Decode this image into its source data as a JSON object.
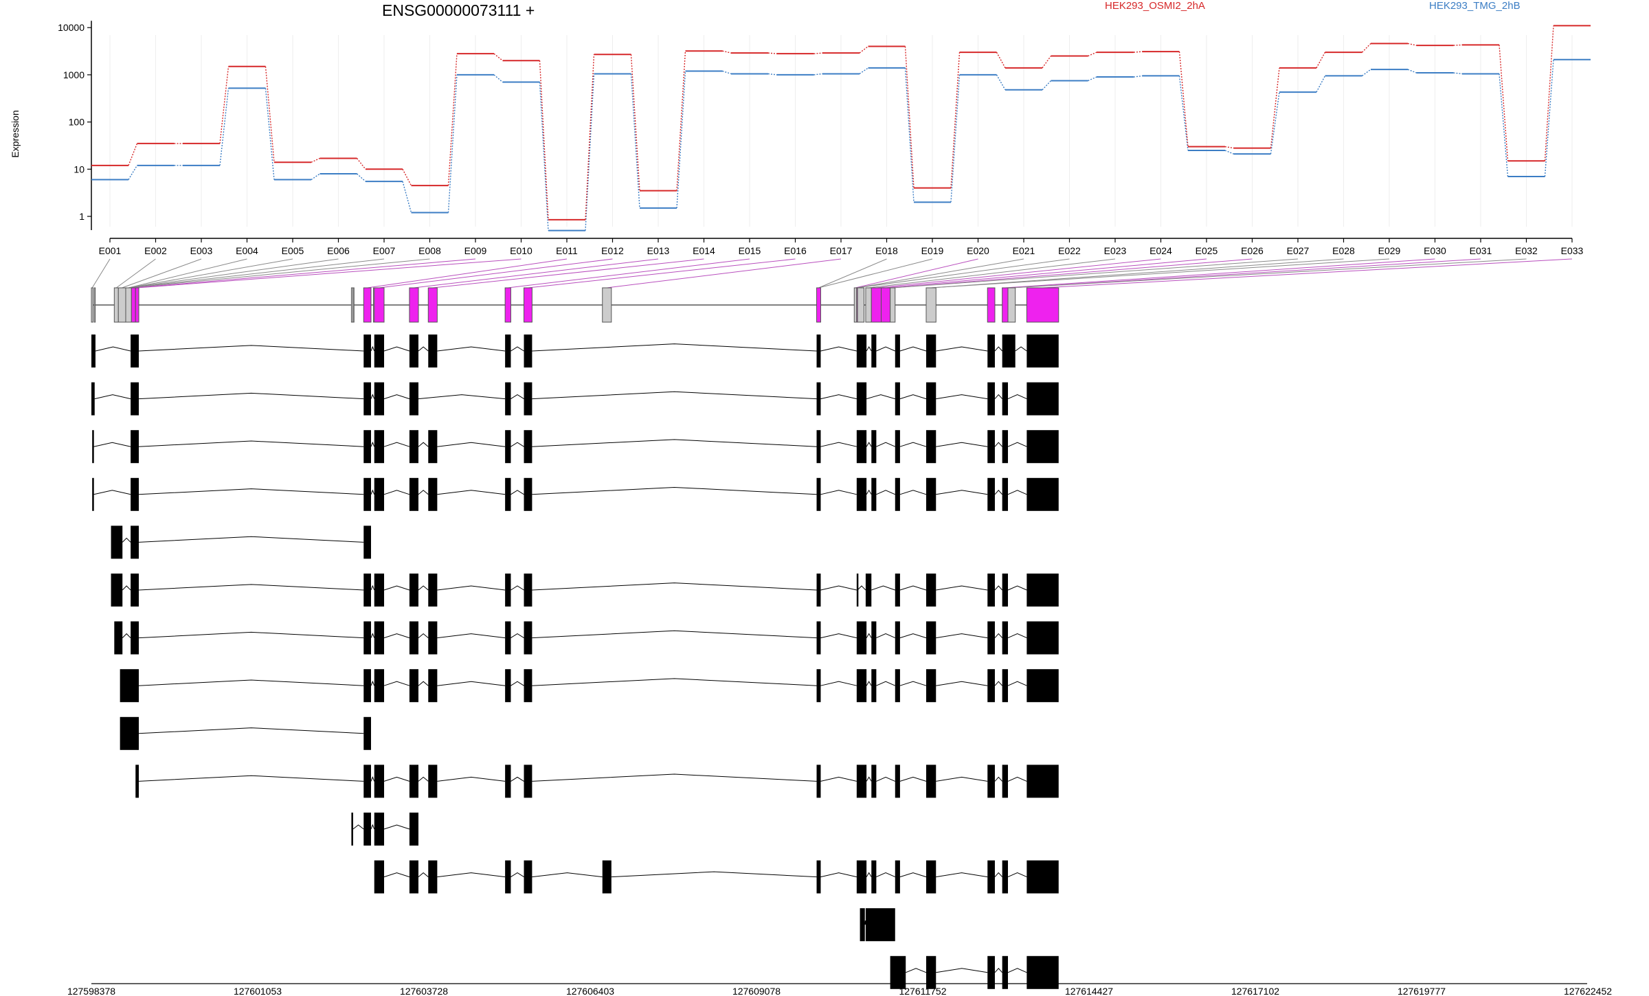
{
  "gene_title": "ENSG00000073111 +",
  "legend": [
    {
      "label": "HEK293_OSMI2_2hA",
      "color": "#d62728"
    },
    {
      "label": "HEK293_TMG_2hB",
      "color": "#3b7dc4"
    }
  ],
  "colors": {
    "highlight": "#ee22ee",
    "gray_exon": "#cccccc",
    "transcript": "#000000",
    "line_red": "#d62728",
    "line_blue": "#3b7dc4"
  },
  "chart_data": {
    "type": "line",
    "ylabel": "Expression",
    "yscale": "log",
    "yticks": [
      "1",
      "10",
      "100",
      "1000",
      "10000"
    ],
    "categories": [
      "E001",
      "E002",
      "E003",
      "E004",
      "E005",
      "E006",
      "E007",
      "E008",
      "E009",
      "E010",
      "E011",
      "E012",
      "E013",
      "E014",
      "E015",
      "E016",
      "E017",
      "E018",
      "E019",
      "E020",
      "E021",
      "E022",
      "E023",
      "E024",
      "E025",
      "E026",
      "E027",
      "E028",
      "E029",
      "E030",
      "E031",
      "E032",
      "E033"
    ],
    "series": [
      {
        "name": "HEK293_OSMI2_2hA",
        "values": [
          12,
          35,
          35,
          1500,
          14,
          17,
          10,
          4.5,
          2800,
          2000,
          0.85,
          2700,
          3.5,
          3200,
          2900,
          2800,
          2900,
          4000,
          4,
          3000,
          1400,
          2500,
          3000,
          3100,
          30,
          28,
          1400,
          3000,
          4600,
          4200,
          4300,
          15,
          11000
        ]
      },
      {
        "name": "HEK293_TMG_2hB",
        "values": [
          6,
          12,
          12,
          520,
          6,
          8,
          5.5,
          1.2,
          1000,
          700,
          0.5,
          1050,
          1.5,
          1200,
          1050,
          1000,
          1050,
          1400,
          2,
          1000,
          480,
          750,
          900,
          950,
          25,
          21,
          430,
          950,
          1300,
          1100,
          1050,
          7,
          2100
        ]
      }
    ],
    "genome_ticks": [
      "127598378",
      "127601053",
      "127603728",
      "127606403",
      "127609078",
      "127611752",
      "127614427",
      "127617102",
      "127619777",
      "127622452"
    ],
    "exon_bins": [
      {
        "s": 0,
        "e": 2,
        "h": false
      },
      {
        "s": 3.5,
        "e": 4,
        "h": false
      },
      {
        "s": 28,
        "e": 33,
        "h": false
      },
      {
        "s": 33,
        "e": 42,
        "h": false
      },
      {
        "s": 42,
        "e": 49,
        "h": false
      },
      {
        "s": 49,
        "e": 54,
        "h": true
      },
      {
        "s": 54,
        "e": 58,
        "h": true
      },
      {
        "s": 318,
        "e": 320,
        "h": false
      },
      {
        "s": 320,
        "e": 321,
        "h": false
      },
      {
        "s": 333,
        "e": 342,
        "h": true
      },
      {
        "s": 345,
        "e": 346,
        "h": false
      },
      {
        "s": 346,
        "e": 358,
        "h": true
      },
      {
        "s": 389,
        "e": 400,
        "h": true
      },
      {
        "s": 412,
        "e": 423,
        "h": true
      },
      {
        "s": 506,
        "e": 513,
        "h": true
      },
      {
        "s": 529,
        "e": 539,
        "h": true
      },
      {
        "s": 625,
        "e": 636,
        "h": false
      },
      {
        "s": 887,
        "e": 892,
        "h": true
      },
      {
        "s": 933,
        "e": 936,
        "h": false
      },
      {
        "s": 936,
        "e": 937,
        "h": true
      },
      {
        "s": 937,
        "e": 945,
        "h": false
      },
      {
        "s": 947,
        "e": 954,
        "h": false
      },
      {
        "s": 954,
        "e": 966,
        "h": true
      },
      {
        "s": 966,
        "e": 977,
        "h": true
      },
      {
        "s": 977,
        "e": 983,
        "h": false
      },
      {
        "s": 1021,
        "e": 1033,
        "h": false
      },
      {
        "s": 1096,
        "e": 1105,
        "h": true
      },
      {
        "s": 1114,
        "e": 1121,
        "h": true
      },
      {
        "s": 1121,
        "e": 1130,
        "h": false
      },
      {
        "s": 1144,
        "e": 1183,
        "h": true
      }
    ],
    "exon_links": [
      {
        "b": 0,
        "h": false
      },
      {
        "b": 2,
        "h": false
      },
      {
        "b": 3,
        "h": false
      },
      {
        "b": 4,
        "h": false
      },
      {
        "b": 4,
        "h": false
      },
      {
        "b": 4,
        "h": false
      },
      {
        "b": 4,
        "h": false
      },
      {
        "b": 4,
        "h": false
      },
      {
        "b": 5,
        "h": true
      },
      {
        "b": 6,
        "h": true
      },
      {
        "b": 9,
        "h": true
      },
      {
        "b": 11,
        "h": true
      },
      {
        "b": 12,
        "h": true
      },
      {
        "b": 13,
        "h": true
      },
      {
        "b": 14,
        "h": true
      },
      {
        "b": 15,
        "h": true
      },
      {
        "b": 16,
        "h": true
      },
      {
        "b": 17,
        "h": false
      },
      {
        "b": 17,
        "h": false
      },
      {
        "b": 18,
        "h": true
      },
      {
        "b": 19,
        "h": false
      },
      {
        "b": 19,
        "h": false
      },
      {
        "b": 21,
        "h": false
      },
      {
        "b": 22,
        "h": true
      },
      {
        "b": 23,
        "h": true
      },
      {
        "b": 24,
        "h": true
      },
      {
        "b": 24,
        "h": false
      },
      {
        "b": 25,
        "h": false
      },
      {
        "b": 25,
        "h": false
      },
      {
        "b": 27,
        "h": true
      },
      {
        "b": 28,
        "h": true
      },
      {
        "b": 28,
        "h": false
      },
      {
        "b": 29,
        "h": true
      }
    ],
    "transcripts": [
      [
        [
          0,
          5
        ],
        [
          48,
          58
        ],
        [
          333,
          342
        ],
        [
          346,
          358
        ],
        [
          389,
          400
        ],
        [
          412,
          423
        ],
        [
          506,
          513
        ],
        [
          529,
          539
        ],
        [
          887,
          892
        ],
        [
          936,
          948
        ],
        [
          954,
          960
        ],
        [
          983,
          989
        ],
        [
          1021,
          1033
        ],
        [
          1096,
          1105
        ],
        [
          1114,
          1130
        ],
        [
          1144,
          1183
        ]
      ],
      [
        [
          0,
          4
        ],
        [
          48,
          58
        ],
        [
          333,
          342
        ],
        [
          346,
          358
        ],
        [
          389,
          400
        ],
        [
          506,
          513
        ],
        [
          529,
          539
        ],
        [
          887,
          892
        ],
        [
          936,
          948
        ],
        [
          983,
          989
        ],
        [
          1021,
          1033
        ],
        [
          1096,
          1105
        ],
        [
          1114,
          1121
        ],
        [
          1144,
          1183
        ]
      ],
      [
        [
          1,
          3
        ],
        [
          48,
          58
        ],
        [
          333,
          342
        ],
        [
          346,
          358
        ],
        [
          389,
          400
        ],
        [
          412,
          423
        ],
        [
          506,
          513
        ],
        [
          529,
          539
        ],
        [
          887,
          892
        ],
        [
          936,
          948
        ],
        [
          954,
          960
        ],
        [
          983,
          989
        ],
        [
          1021,
          1033
        ],
        [
          1096,
          1105
        ],
        [
          1114,
          1121
        ],
        [
          1144,
          1183
        ]
      ],
      [
        [
          1,
          3
        ],
        [
          48,
          58
        ],
        [
          333,
          342
        ],
        [
          346,
          358
        ],
        [
          389,
          400
        ],
        [
          412,
          423
        ],
        [
          506,
          513
        ],
        [
          529,
          539
        ],
        [
          887,
          892
        ],
        [
          936,
          948
        ],
        [
          954,
          960
        ],
        [
          983,
          989
        ],
        [
          1021,
          1033
        ],
        [
          1096,
          1105
        ],
        [
          1114,
          1121
        ],
        [
          1144,
          1183
        ]
      ],
      [
        [
          24,
          38
        ],
        [
          48,
          58
        ],
        [
          333,
          342
        ]
      ],
      [
        [
          24,
          38
        ],
        [
          48,
          58
        ],
        [
          333,
          342
        ],
        [
          346,
          358
        ],
        [
          389,
          400
        ],
        [
          412,
          423
        ],
        [
          506,
          513
        ],
        [
          529,
          539
        ],
        [
          887,
          892
        ],
        [
          936,
          937
        ],
        [
          947,
          954
        ],
        [
          983,
          989
        ],
        [
          1021,
          1033
        ],
        [
          1096,
          1105
        ],
        [
          1114,
          1121
        ],
        [
          1144,
          1183
        ]
      ],
      [
        [
          28,
          38
        ],
        [
          48,
          58
        ],
        [
          333,
          342
        ],
        [
          346,
          358
        ],
        [
          389,
          400
        ],
        [
          412,
          423
        ],
        [
          506,
          513
        ],
        [
          529,
          539
        ],
        [
          887,
          892
        ],
        [
          936,
          948
        ],
        [
          954,
          960
        ],
        [
          983,
          989
        ],
        [
          1021,
          1033
        ],
        [
          1096,
          1105
        ],
        [
          1114,
          1121
        ],
        [
          1144,
          1183
        ]
      ],
      [
        [
          35,
          58
        ],
        [
          333,
          342
        ],
        [
          346,
          358
        ],
        [
          389,
          400
        ],
        [
          412,
          423
        ],
        [
          506,
          513
        ],
        [
          529,
          539
        ],
        [
          887,
          892
        ],
        [
          936,
          948
        ],
        [
          954,
          960
        ],
        [
          983,
          989
        ],
        [
          1021,
          1033
        ],
        [
          1096,
          1105
        ],
        [
          1114,
          1121
        ],
        [
          1144,
          1183
        ]
      ],
      [
        [
          35,
          58
        ],
        [
          333,
          342
        ]
      ],
      [
        [
          54,
          58
        ],
        [
          333,
          342
        ],
        [
          346,
          358
        ],
        [
          389,
          400
        ],
        [
          412,
          423
        ],
        [
          506,
          513
        ],
        [
          529,
          539
        ],
        [
          887,
          892
        ],
        [
          936,
          948
        ],
        [
          954,
          960
        ],
        [
          983,
          989
        ],
        [
          1021,
          1033
        ],
        [
          1096,
          1105
        ],
        [
          1114,
          1121
        ],
        [
          1144,
          1183
        ]
      ],
      [
        [
          318,
          320
        ],
        [
          333,
          342
        ],
        [
          346,
          358
        ],
        [
          389,
          400
        ]
      ],
      [
        [
          346,
          358
        ],
        [
          389,
          400
        ],
        [
          412,
          423
        ],
        [
          506,
          513
        ],
        [
          529,
          539
        ],
        [
          625,
          636
        ],
        [
          887,
          892
        ],
        [
          936,
          948
        ],
        [
          954,
          960
        ],
        [
          983,
          989
        ],
        [
          1021,
          1033
        ],
        [
          1096,
          1105
        ],
        [
          1114,
          1121
        ],
        [
          1144,
          1183
        ]
      ],
      [
        [
          940,
          946
        ],
        [
          947,
          983
        ]
      ],
      [
        [
          977,
          996
        ],
        [
          1021,
          1033
        ],
        [
          1096,
          1105
        ],
        [
          1114,
          1121
        ],
        [
          1144,
          1183
        ]
      ]
    ]
  }
}
